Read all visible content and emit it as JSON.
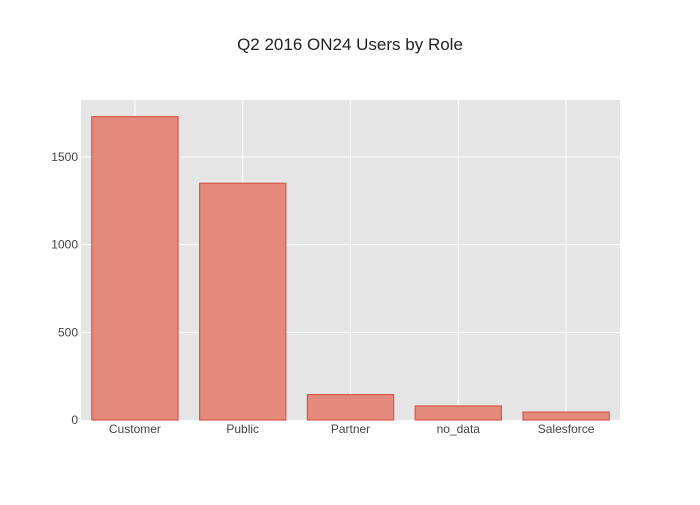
{
  "chart_data": {
    "type": "bar",
    "title": "Q2 2016 ON24 Users by Role",
    "xlabel": "",
    "ylabel": "",
    "categories": [
      "Customer",
      "Public",
      "Partner",
      "no_data",
      "Salesforce"
    ],
    "values": [
      1730,
      1350,
      145,
      80,
      45
    ],
    "ylim": [
      0,
      1825
    ],
    "yticks": [
      0,
      500,
      1000,
      1500
    ],
    "ytick_labels": [
      "0",
      "500",
      "1000",
      "1500"
    ],
    "grid": true,
    "legend": "none",
    "colors": {
      "bar_fill": "#e48a7d",
      "bar_stroke": "#d9584a",
      "plot_bg": "#e5e5e5",
      "grid": "#ffffff",
      "text": "#444444",
      "title": "#222222"
    }
  }
}
